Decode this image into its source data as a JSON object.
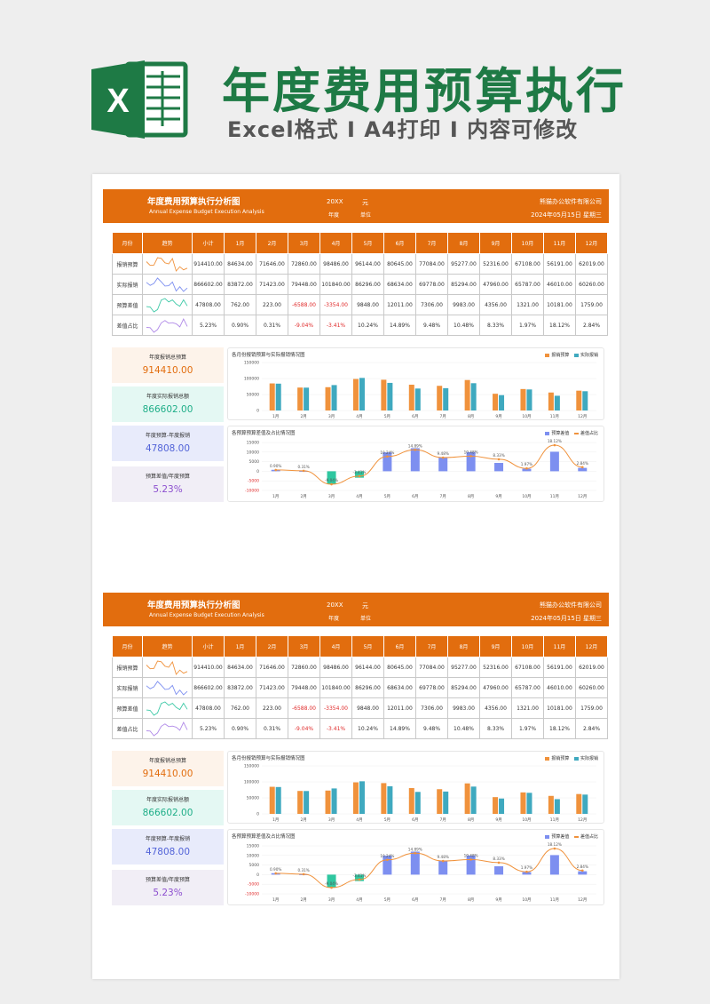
{
  "hero": {
    "title": "年度费用预算执行",
    "subtitle": "Excel格式 Ι A4打印 Ι 内容可修改"
  },
  "sheet": {
    "title": "年度费用预算执行分析图",
    "subtitle": "Annual Expense Budget Execution Analysis",
    "year_value": "20XX",
    "year_label": "年度",
    "unit_value": "元",
    "unit_label": "单位",
    "company": "熊猫办公软件有限公司",
    "date": "2024年05月15日  星期三"
  },
  "table": {
    "headers": [
      "月份",
      "趋势",
      "小计",
      "1月",
      "2月",
      "3月",
      "4月",
      "5月",
      "6月",
      "7月",
      "8月",
      "9月",
      "10月",
      "11月",
      "12月"
    ],
    "rows": [
      {
        "label": "报销预算",
        "values": [
          "914410.00",
          "84634.00",
          "71646.00",
          "72860.00",
          "98486.00",
          "96144.00",
          "80645.00",
          "77084.00",
          "95277.00",
          "52316.00",
          "67108.00",
          "56191.00",
          "62019.00"
        ]
      },
      {
        "label": "实际报销",
        "values": [
          "866602.00",
          "83872.00",
          "71423.00",
          "79448.00",
          "101840.00",
          "86296.00",
          "68634.00",
          "69778.00",
          "85294.00",
          "47960.00",
          "65787.00",
          "46010.00",
          "60260.00"
        ]
      },
      {
        "label": "预算差值",
        "values": [
          "47808.00",
          "762.00",
          "223.00",
          "-6588.00",
          "-3354.00",
          "9848.00",
          "12011.00",
          "7306.00",
          "9983.00",
          "4356.00",
          "1321.00",
          "10181.00",
          "1759.00"
        ]
      },
      {
        "label": "差值占比",
        "values": [
          "5.23%",
          "0.90%",
          "0.31%",
          "-9.04%",
          "-3.41%",
          "10.24%",
          "14.89%",
          "9.48%",
          "10.48%",
          "8.33%",
          "1.97%",
          "18.12%",
          "2.84%"
        ]
      }
    ]
  },
  "kpis": [
    {
      "label": "年度报销总预算",
      "value": "914410.00"
    },
    {
      "label": "年度实际报销总额",
      "value": "866602.00"
    },
    {
      "label": "年度预算-年度报销",
      "value": "47808.00"
    },
    {
      "label": "预算差值/年度预算",
      "value": "5.23%"
    }
  ],
  "colors": {
    "accent": "#e26d0e",
    "budget_bar": "#f0923c",
    "actual_bar": "#3fa9bf",
    "diff_bar": "#7d8ff0",
    "ratio_line": "#f0923c",
    "negative": "#e02b2b",
    "title_green": "#1e7a45"
  },
  "chart_data": [
    {
      "type": "bar",
      "title": "各月份报销预算与实际报销情况图",
      "categories": [
        "1月",
        "2月",
        "3月",
        "4月",
        "5月",
        "6月",
        "7月",
        "8月",
        "9月",
        "10月",
        "11月",
        "12月"
      ],
      "series": [
        {
          "name": "报销预算",
          "values": [
            84634,
            71646,
            72860,
            98486,
            96144,
            80645,
            77084,
            95277,
            52316,
            67108,
            56191,
            62019
          ]
        },
        {
          "name": "实际报销",
          "values": [
            83872,
            71423,
            79448,
            101840,
            86296,
            68634,
            69778,
            85294,
            47960,
            65787,
            46010,
            60260
          ]
        }
      ],
      "yticks": [
        "150000",
        "100000",
        "50000",
        "0"
      ],
      "ylim": [
        0,
        150000
      ],
      "legend": "top-right"
    },
    {
      "type": "bar",
      "title": "各预算预算差值及占比情况图",
      "categories": [
        "1月",
        "2月",
        "3月",
        "4月",
        "5月",
        "6月",
        "7月",
        "8月",
        "9月",
        "10月",
        "11月",
        "12月"
      ],
      "series": [
        {
          "name": "预算差值",
          "values": [
            762,
            223,
            -6588,
            -3354,
            9848,
            12011,
            7306,
            9983,
            4356,
            1321,
            10181,
            1759
          ]
        },
        {
          "name": "差值占比",
          "type": "line",
          "values": [
            0.9,
            0.31,
            -9.04,
            -3.41,
            10.24,
            14.89,
            9.48,
            10.48,
            8.33,
            1.97,
            18.12,
            2.84
          ]
        }
      ],
      "point_labels": [
        "0.90%",
        "0.31%",
        "-9.04%",
        "-3.41%",
        "10.24%",
        "14.89%",
        "9.48%",
        "10.48%",
        "8.33%",
        "1.97%",
        "18.12%",
        "2.84%"
      ],
      "yticks": [
        "15000",
        "10000",
        "5000",
        "0",
        "-5000",
        "-10000"
      ],
      "ylim": [
        -10000,
        15000
      ],
      "legend": "top-right"
    }
  ]
}
